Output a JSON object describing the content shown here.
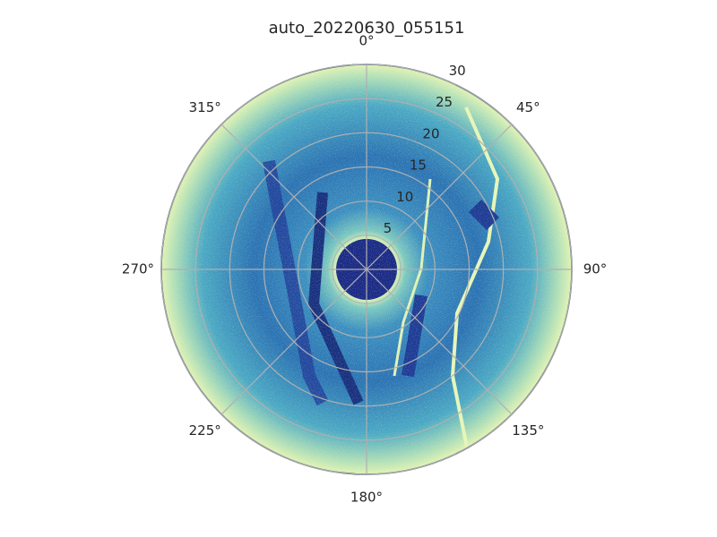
{
  "chart_data": {
    "type": "polar",
    "title": "auto_20220630_055151",
    "rlim": [
      0,
      30
    ],
    "rticks": [
      5,
      10,
      15,
      20,
      25,
      30
    ],
    "thetaticks": [
      {
        "value": 0,
        "label": "0°"
      },
      {
        "value": 45,
        "label": "45°"
      },
      {
        "value": 90,
        "label": "90°"
      },
      {
        "value": 135,
        "label": "135°"
      },
      {
        "value": 180,
        "label": "180°"
      },
      {
        "value": 225,
        "label": "225°"
      },
      {
        "value": 270,
        "label": "270°"
      },
      {
        "value": 315,
        "label": "315°"
      }
    ],
    "theta_direction": "clockwise",
    "theta_zero": "N",
    "grid": true
  }
}
